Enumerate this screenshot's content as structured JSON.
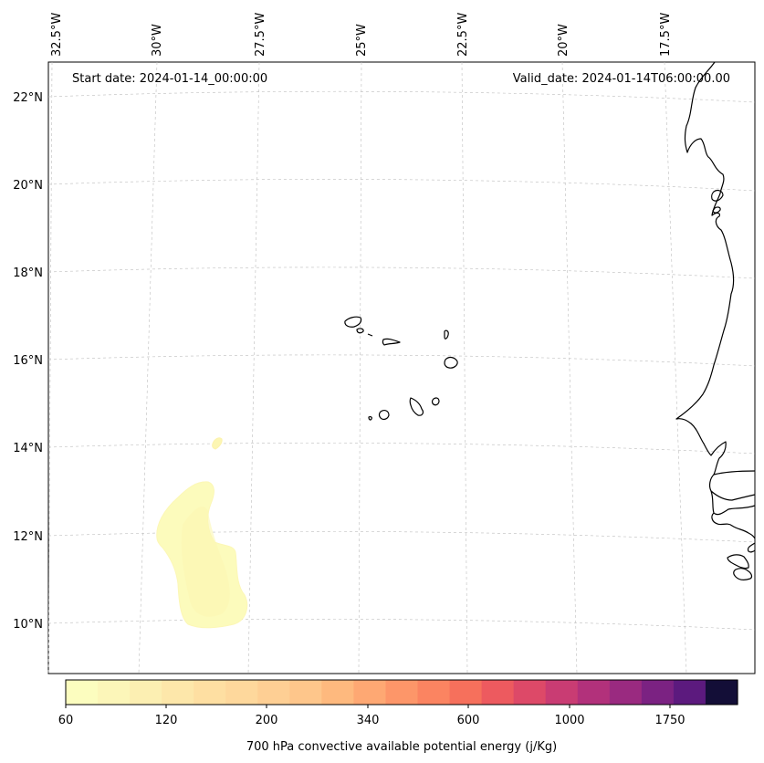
{
  "header": {
    "start_date": "Start date: 2024-01-14_00:00:00",
    "valid_date": "Valid_date: 2024-01-14T06:00:00.00"
  },
  "lon_labels": [
    "32.5°W",
    "30°W",
    "27.5°W",
    "25°W",
    "22.5°W",
    "20°W",
    "17.5°W"
  ],
  "lat_labels": [
    "22°N",
    "20°N",
    "18°N",
    "16°N",
    "14°N",
    "12°N",
    "10°N"
  ],
  "colorbar": {
    "label": "700 hPa convective available potential energy (j/Kg)",
    "tick_labels": [
      "60",
      "120",
      "200",
      "340",
      "600",
      "1000",
      "1750"
    ],
    "colors": [
      "#fcfdbf",
      "#fcf6b9",
      "#fcefb2",
      "#fde7aa",
      "#fedfa2",
      "#fed89c",
      "#fecf94",
      "#fec68b",
      "#feb97e",
      "#fea873",
      "#fd9669",
      "#fb8461",
      "#f6705c",
      "#ed5a5f",
      "#dd4968",
      "#c93c73",
      "#b2317b",
      "#9a2a80",
      "#7b2282",
      "#5c1a7e",
      "#130e37"
    ]
  },
  "field": {
    "name": "cape_700hpa",
    "region": "west-of-cape-verde",
    "approx_value": 60
  }
}
